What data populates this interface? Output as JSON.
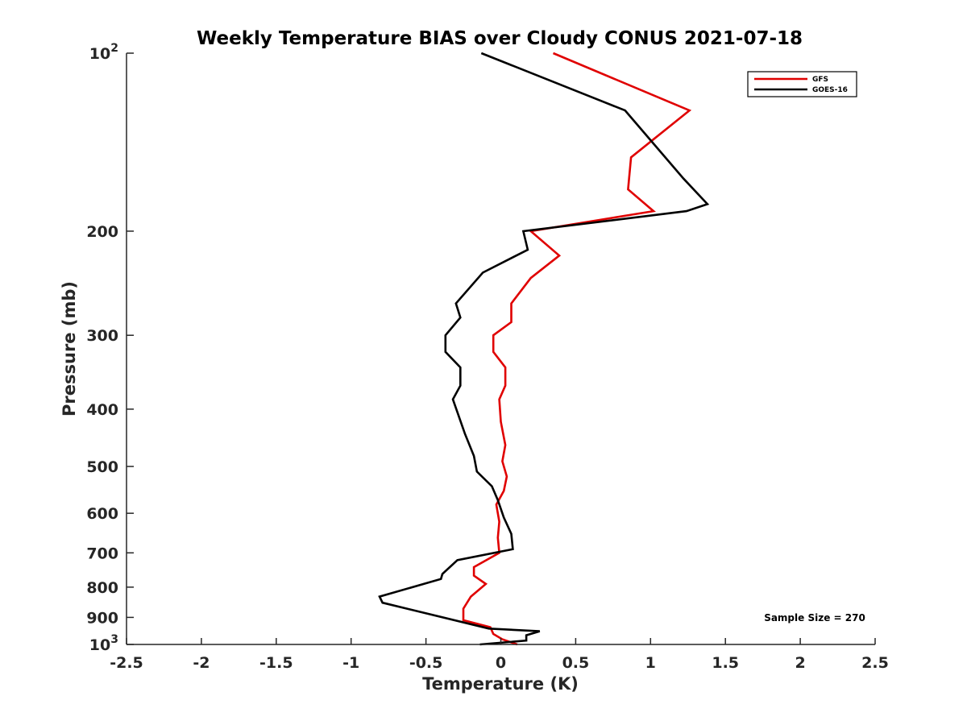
{
  "chart_data": {
    "type": "line",
    "title": "Weekly Temperature BIAS over Cloudy CONUS 2021-07-18",
    "xlabel": "Temperature (K)",
    "ylabel": "Pressure (mb)",
    "xlim": [
      -2.5,
      2.5
    ],
    "ylim": [
      100,
      1000
    ],
    "y_scale": "log",
    "y_reversed": true,
    "grid": false,
    "legend_position": "top-right",
    "x_ticks": [
      -2.5,
      -2,
      -1.5,
      -1,
      -0.5,
      0,
      0.5,
      1,
      1.5,
      2,
      2.5
    ],
    "x_tick_labels": [
      "-2.5",
      "-2",
      "-1.5",
      "-1",
      "-0.5",
      "0",
      "0.5",
      "1",
      "1.5",
      "2",
      "2.5"
    ],
    "y_ticks": [
      100,
      200,
      300,
      400,
      500,
      600,
      700,
      800,
      900,
      1000
    ],
    "y_tick_labels": [
      {
        "base": "10",
        "exp": "2"
      },
      {
        "base": "200",
        "exp": ""
      },
      {
        "base": "300",
        "exp": ""
      },
      {
        "base": "400",
        "exp": ""
      },
      {
        "base": "500",
        "exp": ""
      },
      {
        "base": "600",
        "exp": ""
      },
      {
        "base": "700",
        "exp": ""
      },
      {
        "base": "800",
        "exp": ""
      },
      {
        "base": "900",
        "exp": ""
      },
      {
        "base": "10",
        "exp": "3"
      }
    ],
    "annotation": "Sample Size = 270",
    "series": [
      {
        "name": "GFS",
        "color": "#e00000",
        "points": [
          [
            0.35,
            100
          ],
          [
            1.26,
            125
          ],
          [
            0.87,
            150
          ],
          [
            0.85,
            170
          ],
          [
            1.02,
            185
          ],
          [
            0.2,
            200
          ],
          [
            0.39,
            220
          ],
          [
            0.2,
            240
          ],
          [
            0.07,
            265
          ],
          [
            0.07,
            285
          ],
          [
            -0.05,
            300
          ],
          [
            -0.05,
            320
          ],
          [
            0.03,
            340
          ],
          [
            0.03,
            365
          ],
          [
            -0.01,
            385
          ],
          [
            0,
            420
          ],
          [
            0.03,
            460
          ],
          [
            0.01,
            490
          ],
          [
            0.04,
            520
          ],
          [
            0.02,
            550
          ],
          [
            -0.03,
            580
          ],
          [
            -0.01,
            620
          ],
          [
            -0.02,
            660
          ],
          [
            -0.01,
            700
          ],
          [
            -0.18,
            740
          ],
          [
            -0.18,
            765
          ],
          [
            -0.1,
            790
          ],
          [
            -0.2,
            830
          ],
          [
            -0.25,
            870
          ],
          [
            -0.25,
            910
          ],
          [
            -0.07,
            935
          ],
          [
            -0.05,
            960
          ],
          [
            0.01,
            980
          ],
          [
            0.11,
            1000
          ]
        ]
      },
      {
        "name": "GOES-16",
        "color": "#000000",
        "points": [
          [
            -0.13,
            100
          ],
          [
            0.83,
            125
          ],
          [
            1.22,
            163
          ],
          [
            1.38,
            180
          ],
          [
            1.24,
            185
          ],
          [
            0.15,
            200
          ],
          [
            0.18,
            215
          ],
          [
            -0.12,
            235
          ],
          [
            -0.3,
            265
          ],
          [
            -0.27,
            280
          ],
          [
            -0.37,
            300
          ],
          [
            -0.37,
            320
          ],
          [
            -0.27,
            340
          ],
          [
            -0.27,
            365
          ],
          [
            -0.32,
            385
          ],
          [
            -0.24,
            440
          ],
          [
            -0.18,
            480
          ],
          [
            -0.16,
            510
          ],
          [
            -0.06,
            540
          ],
          [
            -0.02,
            570
          ],
          [
            0.02,
            610
          ],
          [
            0.07,
            650
          ],
          [
            0.08,
            690
          ],
          [
            -0.29,
            720
          ],
          [
            -0.39,
            760
          ],
          [
            -0.4,
            775
          ],
          [
            -0.81,
            830
          ],
          [
            -0.79,
            850
          ],
          [
            -0.08,
            940
          ],
          [
            0.26,
            950
          ],
          [
            0.17,
            965
          ],
          [
            0.17,
            985
          ],
          [
            -0.14,
            1000
          ]
        ]
      }
    ]
  }
}
